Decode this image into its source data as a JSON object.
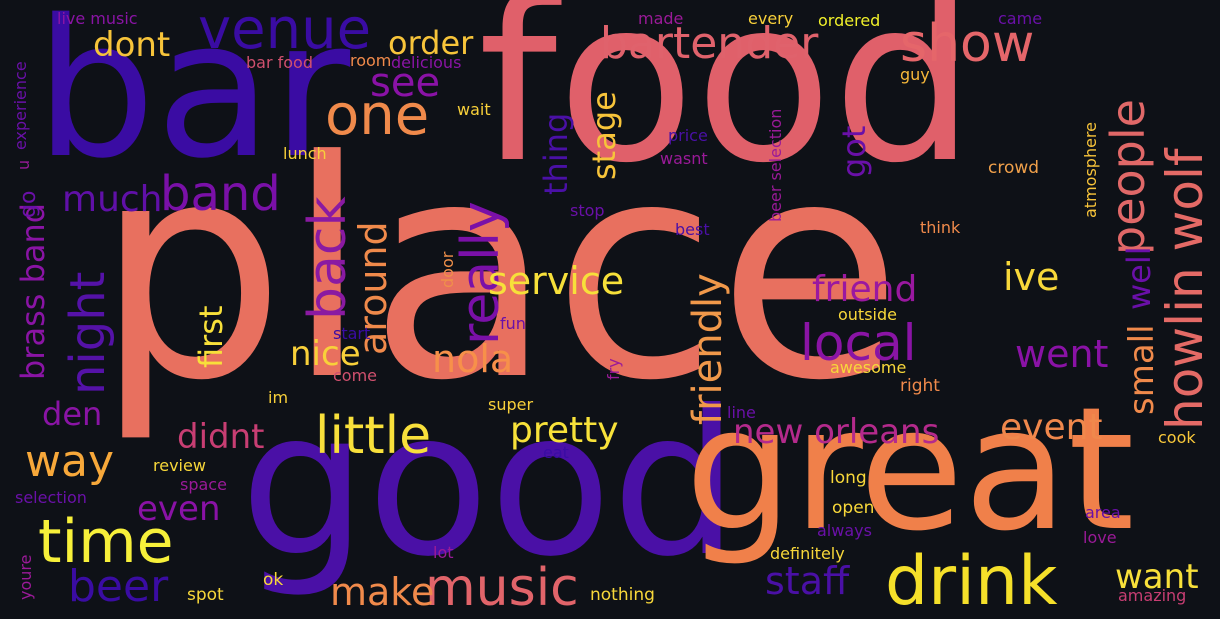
{
  "colors": {
    "background": "#0e1117",
    "palette": [
      "#3a0ca3",
      "#6a00a8",
      "#9c179e",
      "#c83e73",
      "#e16462",
      "#ed7953",
      "#fb9f3a",
      "#fdca26",
      "#f0f921"
    ]
  },
  "words": [
    {
      "text": "place",
      "color": "#e8705f"
    },
    {
      "text": "food",
      "color": "#e0606a"
    },
    {
      "text": "bar",
      "color": "#3a0ca3"
    },
    {
      "text": "good",
      "color": "#4a10a6"
    },
    {
      "text": "great",
      "color": "#f0804a"
    },
    {
      "text": "drink",
      "color": "#f5e02a"
    },
    {
      "text": "music",
      "color": "#e1646a"
    },
    {
      "text": "time",
      "color": "#f7f03a"
    },
    {
      "text": "little",
      "color": "#f8e03b"
    },
    {
      "text": "venue",
      "color": "#3a0ca3"
    },
    {
      "text": "show",
      "color": "#e5666a"
    },
    {
      "text": "bartender",
      "color": "#e0626c"
    },
    {
      "text": "one",
      "color": "#f08a4b"
    },
    {
      "text": "band",
      "color": "#7a10a8"
    },
    {
      "text": "night",
      "color": "#5512a8"
    },
    {
      "text": "back",
      "color": "#8a1aa2"
    },
    {
      "text": "really",
      "color": "#7a10a8"
    },
    {
      "text": "people",
      "color": "#e06868"
    },
    {
      "text": "howlin wolf",
      "color": "#e46a66"
    },
    {
      "text": "local",
      "color": "#8a14a5"
    },
    {
      "text": "friendly",
      "color": "#f0984a"
    },
    {
      "text": "around",
      "color": "#f08a4b"
    },
    {
      "text": "service",
      "color": "#f7e03a"
    },
    {
      "text": "nola",
      "color": "#f7904a"
    },
    {
      "text": "pretty",
      "color": "#f8e23a"
    },
    {
      "text": "friend",
      "color": "#9a18a0"
    },
    {
      "text": "new orleans",
      "color": "#b42a8c"
    },
    {
      "text": "event",
      "color": "#f0884c"
    },
    {
      "text": "went",
      "color": "#8a12a6"
    },
    {
      "text": "ive",
      "color": "#f8d83a"
    },
    {
      "text": "small",
      "color": "#f08a4b"
    },
    {
      "text": "well",
      "color": "#6a10a8"
    },
    {
      "text": "way",
      "color": "#f7a83a"
    },
    {
      "text": "beer",
      "color": "#3a0ca3"
    },
    {
      "text": "staff",
      "color": "#4a10a6"
    },
    {
      "text": "make",
      "color": "#f08a4b"
    },
    {
      "text": "want",
      "color": "#f8e03a"
    },
    {
      "text": "dont",
      "color": "#f7c43a"
    },
    {
      "text": "order",
      "color": "#f7c43a"
    },
    {
      "text": "see",
      "color": "#8a12a6"
    },
    {
      "text": "much",
      "color": "#6010a8"
    },
    {
      "text": "thing",
      "color": "#4a10a6"
    },
    {
      "text": "stage",
      "color": "#f7c43a"
    },
    {
      "text": "got",
      "color": "#6a10a8"
    },
    {
      "text": "first",
      "color": "#f8e03a"
    },
    {
      "text": "nice",
      "color": "#f8d03a"
    },
    {
      "text": "didnt",
      "color": "#c83e73"
    },
    {
      "text": "even",
      "color": "#8a12a6"
    },
    {
      "text": "brass band",
      "color": "#8a14a5"
    },
    {
      "text": "den",
      "color": "#8a14a5"
    },
    {
      "text": "go",
      "color": "#6a10a8"
    },
    {
      "text": "live music",
      "color": "#8a14a5"
    },
    {
      "text": "made",
      "color": "#9a1a98"
    },
    {
      "text": "every",
      "color": "#f8d03a"
    },
    {
      "text": "ordered",
      "color": "#f0f02a"
    },
    {
      "text": "came",
      "color": "#6a10a8"
    },
    {
      "text": "bar food",
      "color": "#d0506e"
    },
    {
      "text": "room",
      "color": "#f08a4b"
    },
    {
      "text": "delicious",
      "color": "#8a14a5"
    },
    {
      "text": "wait",
      "color": "#f8d03a"
    },
    {
      "text": "price",
      "color": "#4a10a6"
    },
    {
      "text": "wasnt",
      "color": "#9a1a98"
    },
    {
      "text": "guy",
      "color": "#f7b83a"
    },
    {
      "text": "lunch",
      "color": "#f8d03a"
    },
    {
      "text": "experience",
      "color": "#6a10a8"
    },
    {
      "text": "u",
      "color": "#9a1a98"
    },
    {
      "text": "beer selection",
      "color": "#9a1a98"
    },
    {
      "text": "crowd",
      "color": "#f0a04a"
    },
    {
      "text": "atmosphere",
      "color": "#f8c43a"
    },
    {
      "text": "stop",
      "color": "#6a10a8"
    },
    {
      "text": "best",
      "color": "#4a10a6"
    },
    {
      "text": "think",
      "color": "#f08a4b"
    },
    {
      "text": "door",
      "color": "#f0904a"
    },
    {
      "text": "fun",
      "color": "#6a10a8"
    },
    {
      "text": "start",
      "color": "#3a0ca3"
    },
    {
      "text": "outside",
      "color": "#f8d83a"
    },
    {
      "text": "fry",
      "color": "#9a1a98"
    },
    {
      "text": "come",
      "color": "#d0506e"
    },
    {
      "text": "awesome",
      "color": "#f8d83a"
    },
    {
      "text": "right",
      "color": "#f08a4b"
    },
    {
      "text": "im",
      "color": "#f8d03a"
    },
    {
      "text": "super",
      "color": "#f8d03a"
    },
    {
      "text": "line",
      "color": "#6a10a8"
    },
    {
      "text": "cook",
      "color": "#f8c83a"
    },
    {
      "text": "review",
      "color": "#f8d83a"
    },
    {
      "text": "eat",
      "color": "#3a0ca3"
    },
    {
      "text": "long",
      "color": "#f8d83a"
    },
    {
      "text": "space",
      "color": "#9a1a98"
    },
    {
      "text": "selection",
      "color": "#6a10a8"
    },
    {
      "text": "open",
      "color": "#f8d83a"
    },
    {
      "text": "always",
      "color": "#6a10a8"
    },
    {
      "text": "area",
      "color": "#6a10a8"
    },
    {
      "text": "love",
      "color": "#9a1a98"
    },
    {
      "text": "lot",
      "color": "#9a1a98"
    },
    {
      "text": "definitely",
      "color": "#f8d83a"
    },
    {
      "text": "youre",
      "color": "#9a1a98"
    },
    {
      "text": "ok",
      "color": "#f8d83a"
    },
    {
      "text": "spot",
      "color": "#f8d83a"
    },
    {
      "text": "nothing",
      "color": "#f8d83a"
    },
    {
      "text": "amazing",
      "color": "#c83e73"
    }
  ]
}
